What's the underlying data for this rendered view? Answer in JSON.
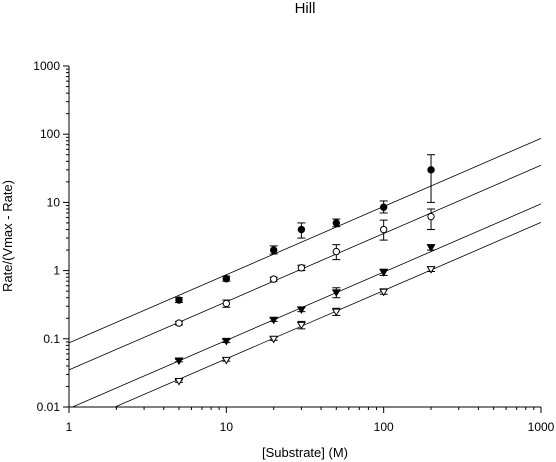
{
  "chart_data": {
    "type": "scatter",
    "title": "Hill",
    "xlabel": "[Substrate] (M)",
    "ylabel": "Rate/(Vmax - Rate)",
    "xscale": "log",
    "yscale": "log",
    "xlim": [
      1,
      1000
    ],
    "ylim": [
      0.01,
      1000
    ],
    "x_ticks": [
      1,
      10,
      100,
      1000
    ],
    "x_tick_labels": [
      "1",
      "10",
      "100",
      "1000"
    ],
    "y_ticks": [
      0.01,
      0.1,
      1,
      10,
      100,
      1000
    ],
    "y_tick_labels": [
      "0.01",
      "0.1",
      "1",
      "10",
      "100",
      "1000"
    ],
    "grid": false,
    "legend": "none",
    "series": [
      {
        "marker": "filled-circle",
        "x": [
          5,
          10,
          20,
          30,
          50,
          100,
          200
        ],
        "y": [
          0.37,
          0.76,
          2.0,
          4.0,
          5.0,
          8.5,
          30
        ],
        "y_low": [
          0.34,
          0.7,
          1.75,
          3.0,
          4.4,
          7.0,
          10
        ],
        "y_high": [
          0.4,
          0.83,
          2.3,
          5.0,
          5.7,
          10.5,
          50
        ],
        "fit": {
          "slope": 1.0,
          "intercept": 0.087
        }
      },
      {
        "marker": "open-circle",
        "x": [
          5,
          10,
          20,
          30,
          50,
          100,
          200
        ],
        "y": [
          0.17,
          0.33,
          0.75,
          1.1,
          1.9,
          4.0,
          6.2
        ],
        "y_low": [
          0.16,
          0.29,
          0.7,
          1.0,
          1.45,
          2.8,
          4.0
        ],
        "y_high": [
          0.18,
          0.37,
          0.8,
          1.2,
          2.4,
          5.5,
          8.0
        ],
        "fit": {
          "slope": 1.0,
          "intercept": 0.035
        }
      },
      {
        "marker": "filled-triangle-down",
        "x": [
          5,
          10,
          20,
          30,
          50,
          100,
          200
        ],
        "y": [
          0.048,
          0.093,
          0.19,
          0.27,
          0.48,
          0.95,
          2.2
        ],
        "y_low": [
          0.046,
          0.088,
          0.18,
          0.25,
          0.4,
          0.85,
          2.0
        ],
        "y_high": [
          0.05,
          0.098,
          0.2,
          0.29,
          0.56,
          1.05,
          2.4
        ],
        "fit": {
          "slope": 1.0,
          "intercept": 0.0095
        }
      },
      {
        "marker": "open-triangle-down",
        "x": [
          5,
          10,
          20,
          30,
          50,
          100,
          200
        ],
        "y": [
          0.024,
          0.049,
          0.1,
          0.16,
          0.25,
          0.49,
          1.05
        ],
        "y_low": [
          0.023,
          0.047,
          0.095,
          0.14,
          0.22,
          0.45,
          0.97
        ],
        "y_high": [
          0.025,
          0.052,
          0.106,
          0.18,
          0.28,
          0.54,
          1.13
        ],
        "fit": {
          "slope": 1.0,
          "intercept": 0.0051
        }
      }
    ]
  }
}
